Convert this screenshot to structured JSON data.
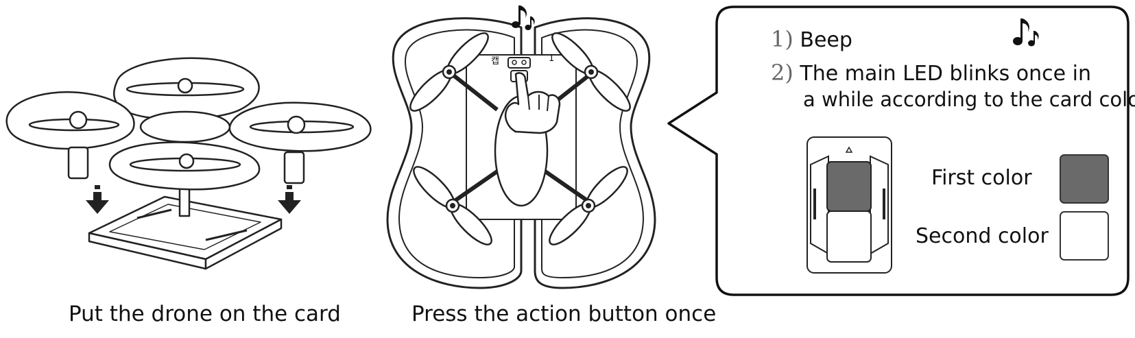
{
  "captions": {
    "place_drone": "Put the drone on the card",
    "press_button": "Press the action button once"
  },
  "drone_labels": {
    "left": "캡",
    "right": "1"
  },
  "callout": {
    "step1_number": "1)",
    "step1_text": "Beep",
    "step2_number": "2)",
    "step2_line1": "The main LED blinks once in",
    "step2_line2": "a while according to the card color.",
    "first_color_label": "First color",
    "second_color_label": "Second color"
  },
  "icons": [
    "music-note-icon",
    "down-arrow-icon",
    "pointing-hand-icon"
  ],
  "colors": {
    "first_color": "#6a6a6a",
    "second_color": "#ffffff",
    "line": "#222222"
  }
}
